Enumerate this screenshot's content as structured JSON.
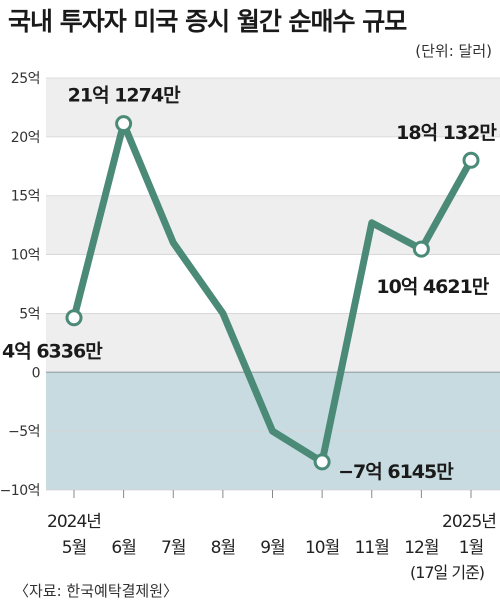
{
  "header": {
    "title": "국내 투자자 미국 증시 월간 순매수 규모",
    "unit": "(단위: 달러)"
  },
  "footer": {
    "source": "〈자료: 한국예탁결제원〉"
  },
  "colors": {
    "line": "#4a8a76",
    "band": "#eeeeee",
    "negative_area": "#c8dbe0",
    "marker_fill": "#ffffff"
  },
  "chart_data": {
    "type": "line",
    "categories": [
      "5월",
      "6월",
      "7월",
      "8월",
      "9월",
      "10월",
      "11월",
      "12월",
      "1월"
    ],
    "year_labels": {
      "first": "2024년",
      "last": "2025년"
    },
    "last_note": "(17일 기준)",
    "values": [
      4.6336,
      21.1274,
      11.0,
      5.0,
      -5.0,
      -7.6145,
      12.7,
      10.4621,
      18.0132
    ],
    "marked_points": [
      0,
      1,
      5,
      7,
      8
    ],
    "data_labels": [
      {
        "index": 0,
        "text": "4억 6336만"
      },
      {
        "index": 1,
        "text": "21억 1274만"
      },
      {
        "index": 5,
        "text": "−7억 6145만"
      },
      {
        "index": 7,
        "text": "10억 4621만"
      },
      {
        "index": 8,
        "text": "18억 132만"
      }
    ],
    "y_ticks": [
      25,
      20,
      15,
      10,
      5,
      0,
      -5,
      -10
    ],
    "y_tick_labels": [
      "25억",
      "20억",
      "15억",
      "10억",
      "5억",
      "0",
      "−5억",
      "−10억"
    ],
    "ylim": [
      -10,
      25
    ],
    "grid": "alternating-bands",
    "legend": "none"
  }
}
